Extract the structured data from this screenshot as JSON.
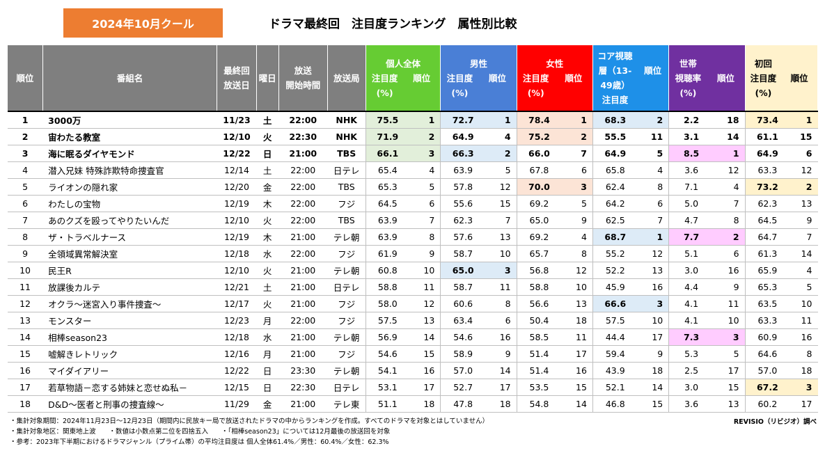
{
  "badge": "2024年10月クール",
  "title": "ドラマ最終回　注目度ランキング　属性別比較",
  "headers": {
    "rank": "順位",
    "program": "番組名",
    "final_date_1": "最終回",
    "final_date_2": "放送日",
    "weekday": "曜日",
    "start_1": "放送",
    "start_2": "開始時間",
    "station": "放送局",
    "all_title": "個人全体",
    "male_title": "男性",
    "female_title": "女性",
    "core_title_1": "コア視聴",
    "core_title_2": "層（13-",
    "core_title_3": "49歳）",
    "core_sub": "注目度",
    "household_title_1": "世帯",
    "household_title_2": "視聴率",
    "household_pct": "(%)",
    "first_title": "初回",
    "attention": "注目度",
    "pct": "(%)",
    "rank_sub": "順位"
  },
  "rows": [
    {
      "rank": "1",
      "program": "3000万",
      "date": "11/23",
      "day": "土",
      "time": "22:00",
      "station": "NHK",
      "all": "75.5",
      "all_r": "1",
      "male": "72.7",
      "male_r": "1",
      "female": "78.4",
      "female_r": "1",
      "core": "68.3",
      "core_r": "2",
      "hh": "2.2",
      "hh_r": "18",
      "first": "73.4",
      "first_r": "1"
    },
    {
      "rank": "2",
      "program": "宙わたる教室",
      "date": "12/10",
      "day": "火",
      "time": "22:30",
      "station": "NHK",
      "all": "71.9",
      "all_r": "2",
      "male": "64.9",
      "male_r": "4",
      "female": "75.2",
      "female_r": "2",
      "core": "55.5",
      "core_r": "11",
      "hh": "3.1",
      "hh_r": "14",
      "first": "61.1",
      "first_r": "15"
    },
    {
      "rank": "3",
      "program": "海に眠るダイヤモンド",
      "date": "12/22",
      "day": "日",
      "time": "21:00",
      "station": "TBS",
      "all": "66.1",
      "all_r": "3",
      "male": "66.3",
      "male_r": "2",
      "female": "66.0",
      "female_r": "7",
      "core": "64.9",
      "core_r": "5",
      "hh": "8.5",
      "hh_r": "1",
      "first": "64.9",
      "first_r": "6"
    },
    {
      "rank": "4",
      "program": "潜入兄妹 特殊詐欺特命捜査官",
      "date": "12/14",
      "day": "土",
      "time": "22:00",
      "station": "日テレ",
      "all": "65.4",
      "all_r": "4",
      "male": "63.9",
      "male_r": "5",
      "female": "67.8",
      "female_r": "6",
      "core": "65.8",
      "core_r": "4",
      "hh": "3.6",
      "hh_r": "12",
      "first": "63.3",
      "first_r": "12"
    },
    {
      "rank": "5",
      "program": "ライオンの隠れ家",
      "date": "12/20",
      "day": "金",
      "time": "22:00",
      "station": "TBS",
      "all": "65.3",
      "all_r": "5",
      "male": "57.8",
      "male_r": "12",
      "female": "70.0",
      "female_r": "3",
      "core": "62.4",
      "core_r": "8",
      "hh": "7.1",
      "hh_r": "4",
      "first": "73.2",
      "first_r": "2"
    },
    {
      "rank": "6",
      "program": "わたしの宝物",
      "date": "12/19",
      "day": "木",
      "time": "22:00",
      "station": "フジ",
      "all": "64.5",
      "all_r": "6",
      "male": "55.6",
      "male_r": "15",
      "female": "69.2",
      "female_r": "5",
      "core": "64.2",
      "core_r": "6",
      "hh": "5.0",
      "hh_r": "7",
      "first": "62.3",
      "first_r": "13"
    },
    {
      "rank": "7",
      "program": "あのクズを殴ってやりたいんだ",
      "date": "12/10",
      "day": "火",
      "time": "22:00",
      "station": "TBS",
      "all": "63.9",
      "all_r": "7",
      "male": "62.3",
      "male_r": "7",
      "female": "65.0",
      "female_r": "9",
      "core": "62.5",
      "core_r": "7",
      "hh": "4.7",
      "hh_r": "8",
      "first": "64.5",
      "first_r": "9"
    },
    {
      "rank": "8",
      "program": "ザ・トラベルナース",
      "date": "12/19",
      "day": "木",
      "time": "21:00",
      "station": "テレ朝",
      "all": "63.9",
      "all_r": "8",
      "male": "57.6",
      "male_r": "13",
      "female": "69.2",
      "female_r": "4",
      "core": "68.7",
      "core_r": "1",
      "hh": "7.7",
      "hh_r": "2",
      "first": "64.7",
      "first_r": "7"
    },
    {
      "rank": "9",
      "program": "全領域異常解決室",
      "date": "12/18",
      "day": "水",
      "time": "22:00",
      "station": "フジ",
      "all": "61.9",
      "all_r": "9",
      "male": "58.7",
      "male_r": "10",
      "female": "65.7",
      "female_r": "8",
      "core": "55.2",
      "core_r": "12",
      "hh": "5.1",
      "hh_r": "6",
      "first": "61.3",
      "first_r": "14"
    },
    {
      "rank": "10",
      "program": "民王R",
      "date": "12/10",
      "day": "火",
      "time": "21:00",
      "station": "テレ朝",
      "all": "60.8",
      "all_r": "10",
      "male": "65.0",
      "male_r": "3",
      "female": "56.8",
      "female_r": "12",
      "core": "52.2",
      "core_r": "13",
      "hh": "3.0",
      "hh_r": "16",
      "first": "65.9",
      "first_r": "4"
    },
    {
      "rank": "11",
      "program": "放課後カルテ",
      "date": "12/21",
      "day": "土",
      "time": "21:00",
      "station": "日テレ",
      "all": "58.8",
      "all_r": "11",
      "male": "58.7",
      "male_r": "11",
      "female": "58.8",
      "female_r": "10",
      "core": "45.9",
      "core_r": "16",
      "hh": "4.4",
      "hh_r": "9",
      "first": "65.3",
      "first_r": "5"
    },
    {
      "rank": "12",
      "program": "オクラ～迷宮入り事件捜査～",
      "date": "12/17",
      "day": "火",
      "time": "21:00",
      "station": "フジ",
      "all": "58.0",
      "all_r": "12",
      "male": "60.6",
      "male_r": "8",
      "female": "56.6",
      "female_r": "13",
      "core": "66.6",
      "core_r": "3",
      "hh": "4.1",
      "hh_r": "11",
      "first": "63.5",
      "first_r": "10"
    },
    {
      "rank": "13",
      "program": "モンスター",
      "date": "12/23",
      "day": "月",
      "time": "22:00",
      "station": "フジ",
      "all": "57.5",
      "all_r": "13",
      "male": "63.4",
      "male_r": "6",
      "female": "50.4",
      "female_r": "18",
      "core": "57.5",
      "core_r": "10",
      "hh": "4.1",
      "hh_r": "10",
      "first": "63.3",
      "first_r": "11"
    },
    {
      "rank": "14",
      "program": "相棒season23",
      "date": "12/18",
      "day": "水",
      "time": "21:00",
      "station": "テレ朝",
      "all": "56.9",
      "all_r": "14",
      "male": "54.6",
      "male_r": "16",
      "female": "58.5",
      "female_r": "11",
      "core": "44.4",
      "core_r": "17",
      "hh": "7.3",
      "hh_r": "3",
      "first": "60.9",
      "first_r": "16"
    },
    {
      "rank": "15",
      "program": "嘘解きレトリック",
      "date": "12/16",
      "day": "月",
      "time": "21:00",
      "station": "フジ",
      "all": "54.6",
      "all_r": "15",
      "male": "58.9",
      "male_r": "9",
      "female": "51.4",
      "female_r": "17",
      "core": "59.4",
      "core_r": "9",
      "hh": "5.3",
      "hh_r": "5",
      "first": "64.6",
      "first_r": "8"
    },
    {
      "rank": "16",
      "program": "マイダイアリー",
      "date": "12/22",
      "day": "日",
      "time": "23:30",
      "station": "テレ朝",
      "all": "54.1",
      "all_r": "16",
      "male": "57.0",
      "male_r": "14",
      "female": "51.4",
      "female_r": "16",
      "core": "43.9",
      "core_r": "18",
      "hh": "2.5",
      "hh_r": "17",
      "first": "57.0",
      "first_r": "18"
    },
    {
      "rank": "17",
      "program": "若草物語－恋する姉妹と恋せぬ私－",
      "date": "12/15",
      "day": "日",
      "time": "22:30",
      "station": "日テレ",
      "all": "53.1",
      "all_r": "17",
      "male": "52.7",
      "male_r": "17",
      "female": "53.5",
      "female_r": "15",
      "core": "52.1",
      "core_r": "14",
      "hh": "3.0",
      "hh_r": "15",
      "first": "67.2",
      "first_r": "3"
    },
    {
      "rank": "18",
      "program": "D&D～医者と刑事の捜査線～",
      "date": "11/29",
      "day": "金",
      "time": "21:00",
      "station": "テレ東",
      "all": "51.1",
      "all_r": "18",
      "male": "47.8",
      "male_r": "18",
      "female": "54.8",
      "female_r": "14",
      "core": "46.8",
      "core_r": "15",
      "hh": "3.6",
      "hh_r": "13",
      "first": "60.2",
      "first_r": "17"
    }
  ],
  "notes": [
    "・集計対象期間：2024年11月23日～12月23日（期間内に民放キー局で放送されたドラマの中からランキングを作成。すべてのドラマを対象とはしていません）",
    "・集計対象地区：関東地上波　　・数値は小数点第二位を四捨五入　　・「相棒season23」については12月最後の放送回を対象",
    "・参考：2023年下半期におけるドラマジャンル（プライム帯）の平均注目度は 個人全体61.4%／男性：60.4%／女性：62.3%"
  ],
  "credit": "REVISIO（リビジオ）調べ",
  "colors": {
    "badge": "#ed7d31",
    "header_gray": "#7f7f7f",
    "all": "#66cc33",
    "male": "#4a7fd6",
    "female": "#ff0000",
    "core": "#1e90e8",
    "household": "#7030a0",
    "first": "#fff2cc",
    "highlight_all": "#e2efda",
    "highlight_male": "#ddebf7",
    "highlight_female": "#fce4d6",
    "highlight_household": "#ffccff",
    "highlight_first": "#fff2cc"
  }
}
